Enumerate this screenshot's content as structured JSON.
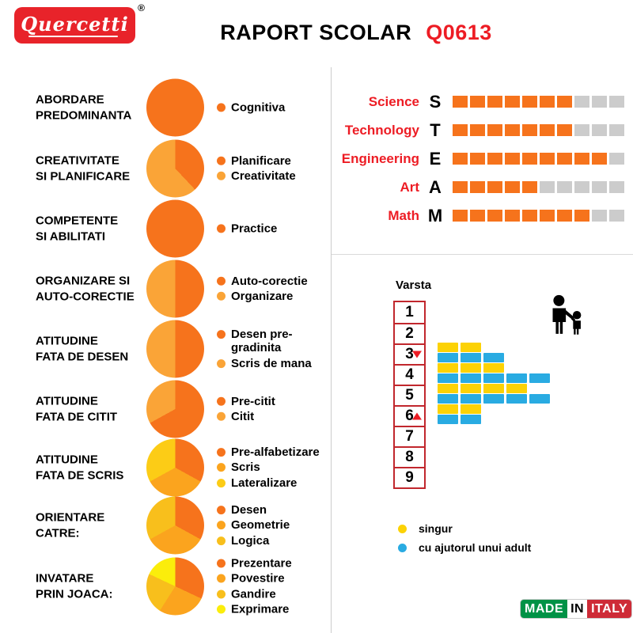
{
  "header": {
    "logo_text": "Quercetti",
    "registered": "®",
    "title_black": "RAPORT SCOLAR",
    "title_red": "Q0613"
  },
  "colors": {
    "dark_orange": "#F6731C",
    "light_orange": "#FAA437",
    "mid_orange": "#FBA41E",
    "gold": "#F8BF1C",
    "yellow_gold": "#FCCC16",
    "bright_yellow": "#FBED0B",
    "bar_yellow": "#FCD205",
    "bar_blue": "#29ABE2",
    "accent_red": "#ED1C24",
    "box_border_red": "#C1272D",
    "empty_gray": "#CCCCCC",
    "logo_red": "#E8232A",
    "italy_green": "#009246",
    "italy_red": "#CE2B37"
  },
  "chart_data": [
    {
      "type": "pie",
      "title": "ABORDARE PREDOMINANTA",
      "title_lines": [
        "ABORDARE",
        "PREDOMINANTA"
      ],
      "labels": [
        "Cognitiva"
      ],
      "values": [
        100
      ],
      "colors": [
        "#F6731C"
      ]
    },
    {
      "type": "pie",
      "title": "CREATIVITATE SI PLANIFICARE",
      "title_lines": [
        "CREATIVITATE",
        "SI PLANIFICARE"
      ],
      "labels": [
        "Planificare",
        "Creativitate"
      ],
      "values": [
        38,
        62
      ],
      "colors": [
        "#F6731C",
        "#FAA437"
      ]
    },
    {
      "type": "pie",
      "title": "COMPETENTE SI ABILITATI",
      "title_lines": [
        "COMPETENTE",
        "SI ABILITATI"
      ],
      "labels": [
        "Practice"
      ],
      "values": [
        100
      ],
      "colors": [
        "#F6731C"
      ]
    },
    {
      "type": "pie",
      "title": "ORGANIZARE SI AUTO-CORECTIE",
      "title_lines": [
        "ORGANIZARE SI",
        "AUTO-CORECTIE"
      ],
      "labels": [
        "Auto-corectie",
        "Organizare"
      ],
      "values": [
        50,
        50
      ],
      "colors": [
        "#F6731C",
        "#FAA437"
      ]
    },
    {
      "type": "pie",
      "title": "ATITUDINE FATA DE DESEN",
      "title_lines": [
        "ATITUDINE",
        "FATA DE DESEN"
      ],
      "labels": [
        "Desen pre-gradinita",
        "Scris de mana"
      ],
      "values": [
        50,
        50
      ],
      "colors": [
        "#F6731C",
        "#FAA437"
      ]
    },
    {
      "type": "pie",
      "title": "ATITUDINE FATA DE CITIT",
      "title_lines": [
        "ATITUDINE",
        "FATA DE CITIT"
      ],
      "labels": [
        "Pre-citit",
        "Citit"
      ],
      "values": [
        67,
        33
      ],
      "colors": [
        "#F6731C",
        "#FAA437"
      ]
    },
    {
      "type": "pie",
      "title": "ATITUDINE FATA DE SCRIS",
      "title_lines": [
        "ATITUDINE",
        "FATA DE SCRIS"
      ],
      "labels": [
        "Pre-alfabetizare",
        "Scris",
        "Lateralizare"
      ],
      "values": [
        33,
        34,
        33
      ],
      "colors": [
        "#F6731C",
        "#FBA41E",
        "#FCCC16"
      ]
    },
    {
      "type": "pie",
      "title": "ORIENTARE CATRE:",
      "title_lines": [
        "ORIENTARE",
        "CATRE:"
      ],
      "labels": [
        "Desen",
        "Geometrie",
        "Logica"
      ],
      "values": [
        33,
        34,
        33
      ],
      "colors": [
        "#F6731C",
        "#FBA41E",
        "#F8BF1C"
      ]
    },
    {
      "type": "pie",
      "title": "INVATARE PRIN JOACA:",
      "title_lines": [
        "INVATARE",
        "PRIN JOACA:"
      ],
      "labels": [
        "Prezentare",
        "Povestire",
        "Gandire",
        "Exprimare"
      ],
      "values": [
        32,
        27,
        23,
        18
      ],
      "colors": [
        "#F6731C",
        "#FBA41E",
        "#F8BF1C",
        "#FBED0B"
      ]
    },
    {
      "type": "bar",
      "title": "STEAM",
      "categories": [
        "Science",
        "Technology",
        "Engineering",
        "Art",
        "Math"
      ],
      "letters": [
        "S",
        "T",
        "E",
        "A",
        "M"
      ],
      "values": [
        7,
        7,
        9,
        5,
        8
      ],
      "ylim": [
        0,
        10
      ],
      "filled_color": "#F6731C",
      "empty_color": "#CCCCCC"
    },
    {
      "type": "bar",
      "title": "Varsta",
      "categories": [
        "1",
        "2",
        "3",
        "4",
        "5",
        "6",
        "7",
        "8",
        "9"
      ],
      "series": [
        {
          "name": "singur",
          "color": "#FCD205",
          "values": [
            0,
            0,
            2,
            3,
            4,
            2,
            0,
            0,
            0
          ]
        },
        {
          "name": "cu ajutorul unui adult",
          "color": "#29ABE2",
          "values": [
            0,
            0,
            3,
            5,
            5,
            2,
            0,
            0,
            0
          ]
        }
      ],
      "segment_max": 5,
      "markers": [
        {
          "age": "3",
          "direction": "down",
          "color": "#ED1C24"
        },
        {
          "age": "6",
          "direction": "up",
          "color": "#ED1C24"
        }
      ]
    }
  ],
  "legend": {
    "items": [
      {
        "label": "singur",
        "color": "#FCD205"
      },
      {
        "label": "cu ajutorul unui adult",
        "color": "#29ABE2"
      }
    ]
  },
  "made_in_italy": {
    "made": "MADE",
    "in": "IN",
    "italy": "ITALY"
  }
}
